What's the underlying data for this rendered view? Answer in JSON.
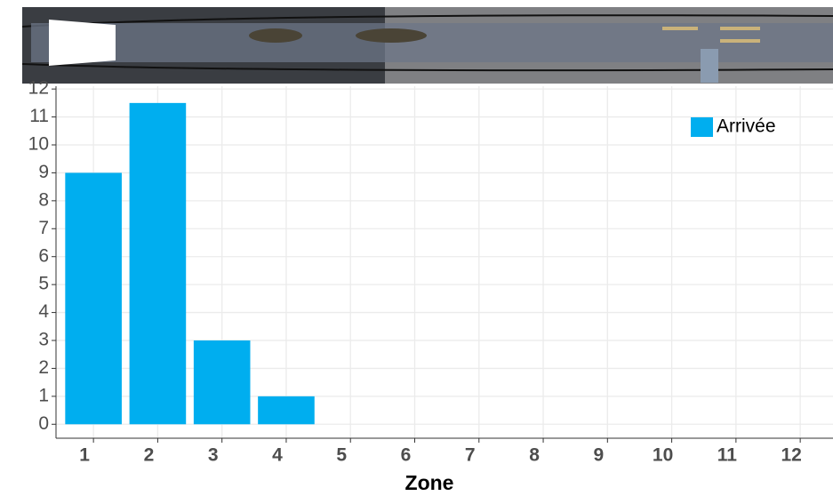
{
  "chart_data": {
    "type": "bar",
    "x_label": "Zone",
    "categories": [
      "1",
      "2",
      "3",
      "4",
      "5",
      "6",
      "7",
      "8",
      "9",
      "10",
      "11",
      "12"
    ],
    "series": [
      {
        "name": "Arrivée",
        "color": "#00aeef",
        "values": [
          9,
          11.5,
          3,
          1,
          0,
          0,
          0,
          0,
          0,
          0,
          0,
          0
        ]
      }
    ],
    "ylim": [
      -0.5,
      12.1
    ],
    "yticks": [
      0,
      1,
      2,
      3,
      4,
      5,
      6,
      7,
      8,
      9,
      10,
      11,
      12
    ],
    "grid": true,
    "legend": "top-right"
  }
}
